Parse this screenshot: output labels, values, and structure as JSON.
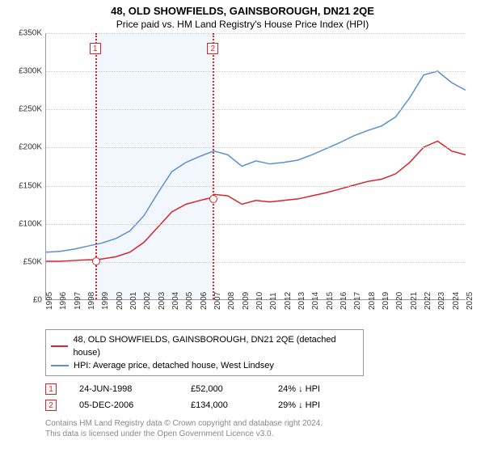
{
  "title": "48, OLD SHOWFIELDS, GAINSBOROUGH, DN21 2QE",
  "subtitle": "Price paid vs. HM Land Registry's House Price Index (HPI)",
  "chart": {
    "type": "line",
    "background_color": "#ffffff",
    "grid_color": "#cccccc",
    "shaded_band_color": "#f1f7fd",
    "shaded_band_xstart": 1998.5,
    "shaded_band_xend": 2006.9,
    "axis_color": "#999999",
    "text_color": "#333333",
    "xlim": [
      1995,
      2025
    ],
    "ylim": [
      0,
      350000
    ],
    "ytick_step": 50000,
    "yticks": [
      "£0",
      "£50K",
      "£100K",
      "£150K",
      "£200K",
      "£250K",
      "£300K",
      "£350K"
    ],
    "xticks": [
      1995,
      1996,
      1997,
      1998,
      1999,
      2000,
      2001,
      2002,
      2003,
      2004,
      2005,
      2006,
      2007,
      2008,
      2009,
      2010,
      2011,
      2012,
      2013,
      2014,
      2015,
      2016,
      2017,
      2018,
      2019,
      2020,
      2021,
      2022,
      2023,
      2024,
      2025
    ],
    "title_fontsize": 13,
    "label_fontsize": 10,
    "series": [
      {
        "name": "48, OLD SHOWFIELDS, GAINSBOROUGH, DN21 2QE (detached house)",
        "color": "#d8242a",
        "line_width": 1.5,
        "data": [
          [
            1995,
            50000
          ],
          [
            1996,
            50000
          ],
          [
            1997,
            51000
          ],
          [
            1998,
            52000
          ],
          [
            1998.5,
            52000
          ],
          [
            1999,
            53000
          ],
          [
            2000,
            56000
          ],
          [
            2001,
            62000
          ],
          [
            2002,
            75000
          ],
          [
            2003,
            95000
          ],
          [
            2004,
            115000
          ],
          [
            2005,
            125000
          ],
          [
            2006,
            130000
          ],
          [
            2006.9,
            134000
          ],
          [
            2007,
            138000
          ],
          [
            2008,
            136000
          ],
          [
            2009,
            125000
          ],
          [
            2010,
            130000
          ],
          [
            2011,
            128000
          ],
          [
            2012,
            130000
          ],
          [
            2013,
            132000
          ],
          [
            2014,
            136000
          ],
          [
            2015,
            140000
          ],
          [
            2016,
            145000
          ],
          [
            2017,
            150000
          ],
          [
            2018,
            155000
          ],
          [
            2019,
            158000
          ],
          [
            2020,
            165000
          ],
          [
            2021,
            180000
          ],
          [
            2022,
            200000
          ],
          [
            2023,
            208000
          ],
          [
            2024,
            195000
          ],
          [
            2025,
            190000
          ]
        ]
      },
      {
        "name": "HPI: Average price, detached house, West Lindsey",
        "color": "#5b8fcf",
        "line_width": 1.5,
        "data": [
          [
            1995,
            62000
          ],
          [
            1996,
            63000
          ],
          [
            1997,
            66000
          ],
          [
            1998,
            70000
          ],
          [
            1999,
            74000
          ],
          [
            2000,
            80000
          ],
          [
            2001,
            90000
          ],
          [
            2002,
            110000
          ],
          [
            2003,
            140000
          ],
          [
            2004,
            168000
          ],
          [
            2005,
            180000
          ],
          [
            2006,
            188000
          ],
          [
            2007,
            195000
          ],
          [
            2008,
            190000
          ],
          [
            2009,
            175000
          ],
          [
            2010,
            182000
          ],
          [
            2011,
            178000
          ],
          [
            2012,
            180000
          ],
          [
            2013,
            183000
          ],
          [
            2014,
            190000
          ],
          [
            2015,
            198000
          ],
          [
            2016,
            206000
          ],
          [
            2017,
            215000
          ],
          [
            2018,
            222000
          ],
          [
            2019,
            228000
          ],
          [
            2020,
            240000
          ],
          [
            2021,
            265000
          ],
          [
            2022,
            295000
          ],
          [
            2023,
            300000
          ],
          [
            2024,
            285000
          ],
          [
            2025,
            275000
          ]
        ]
      }
    ],
    "markers": [
      {
        "label": "1",
        "x": 1998.5,
        "y": 52000,
        "color": "#d8242a"
      },
      {
        "label": "2",
        "x": 2006.9,
        "y": 134000,
        "color": "#d8242a"
      }
    ]
  },
  "legend": {
    "items": [
      {
        "color": "#d8242a",
        "label": "48, OLD SHOWFIELDS, GAINSBOROUGH, DN21 2QE (detached house)"
      },
      {
        "color": "#5b8fcf",
        "label": "HPI: Average price, detached house, West Lindsey"
      }
    ]
  },
  "events": [
    {
      "label": "1",
      "color": "#d8242a",
      "date": "24-JUN-1998",
      "price": "£52,000",
      "note": "24% ↓ HPI"
    },
    {
      "label": "2",
      "color": "#d8242a",
      "date": "05-DEC-2006",
      "price": "£134,000",
      "note": "29% ↓ HPI"
    }
  ],
  "footer": {
    "line1": "Contains HM Land Registry data © Crown copyright and database right 2024.",
    "line2": "This data is licensed under the Open Government Licence v3.0."
  }
}
